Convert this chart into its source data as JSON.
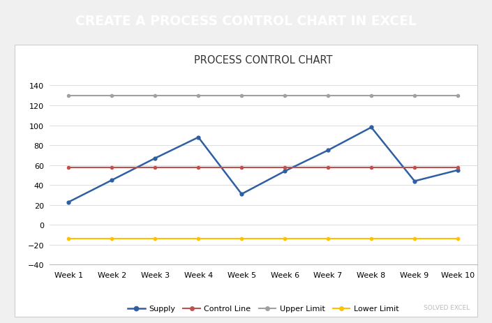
{
  "title_banner": "CREATE A PROCESS CONTROL CHART IN EXCEL",
  "banner_color": "#4472C4",
  "banner_text_color": "#FFFFFF",
  "chart_title": "PROCESS CONTROL CHART",
  "weeks": [
    "Week 1",
    "Week 2",
    "Week 3",
    "Week 4",
    "Week 5",
    "Week 6",
    "Week 7",
    "Week 8",
    "Week 9",
    "Week 10"
  ],
  "supply": [
    23,
    45,
    67,
    88,
    31,
    54,
    75,
    98,
    44,
    55
  ],
  "control_line": [
    58,
    58,
    58,
    58,
    58,
    58,
    58,
    58,
    58,
    58
  ],
  "upper_limit": [
    130,
    130,
    130,
    130,
    130,
    130,
    130,
    130,
    130,
    130
  ],
  "lower_limit": [
    -14,
    -14,
    -14,
    -14,
    -14,
    -14,
    -14,
    -14,
    -14,
    -14
  ],
  "supply_color": "#2E5FA3",
  "control_line_color": "#C0504D",
  "upper_limit_color": "#A0A0A0",
  "lower_limit_color": "#FFC000",
  "ylim": [
    -40,
    155
  ],
  "yticks": [
    -40,
    -20,
    0,
    20,
    40,
    60,
    80,
    100,
    120,
    140
  ],
  "background_color": "#FFFFFF",
  "chart_bg_color": "#FFFFFF",
  "outer_bg_color": "#F0F0F0"
}
